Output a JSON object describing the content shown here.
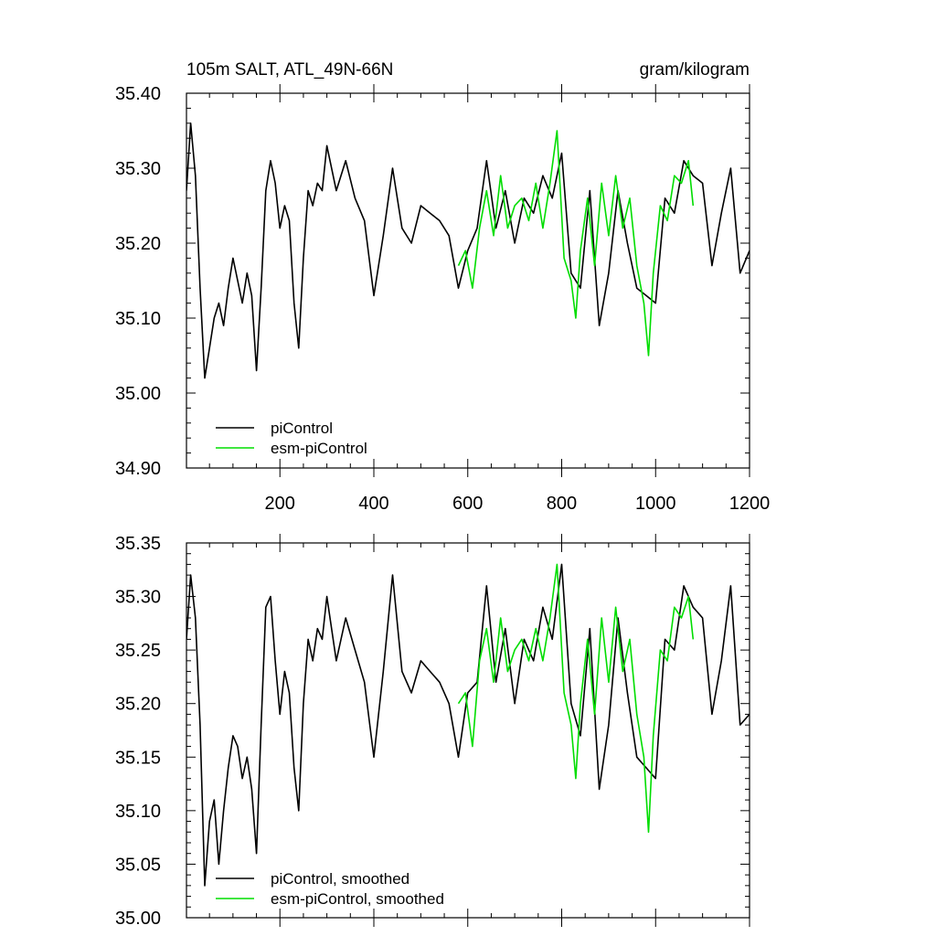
{
  "chart_data": [
    {
      "type": "line",
      "title_left": "105m SALT, ATL_49N-66N",
      "title_right": "gram/kilogram",
      "xlabel": "",
      "ylabel": "",
      "xlim": [
        1,
        1200
      ],
      "ylim": [
        34.9,
        35.4
      ],
      "x_ticks": [
        200,
        400,
        600,
        800,
        1000,
        1200
      ],
      "x_tick_labels": [
        "200",
        "400",
        "600",
        "800",
        "1000",
        "1200"
      ],
      "y_ticks": [
        34.9,
        35.0,
        35.1,
        35.2,
        35.3,
        35.4
      ],
      "y_tick_labels": [
        "34.90",
        "35.00",
        "35.10",
        "35.20",
        "35.30",
        "35.40"
      ],
      "legend": {
        "placement": "bottom-left",
        "entries": [
          "piControl",
          "esm-piControl"
        ]
      },
      "series": [
        {
          "name": "piControl",
          "color": "#000000",
          "x": [
            1,
            10,
            20,
            30,
            40,
            50,
            60,
            70,
            80,
            90,
            100,
            110,
            120,
            130,
            140,
            150,
            160,
            170,
            180,
            190,
            200,
            210,
            220,
            230,
            240,
            250,
            260,
            270,
            280,
            290,
            300,
            320,
            340,
            360,
            380,
            400,
            420,
            440,
            460,
            480,
            500,
            520,
            540,
            560,
            580,
            600,
            620,
            640,
            660,
            680,
            700,
            720,
            740,
            760,
            780,
            800,
            820,
            840,
            860,
            880,
            900,
            920,
            940,
            960,
            980,
            1000,
            1020,
            1040,
            1060,
            1080,
            1100,
            1120,
            1140,
            1160,
            1180,
            1200
          ],
          "values": [
            35.27,
            35.36,
            35.29,
            35.14,
            35.02,
            35.06,
            35.1,
            35.12,
            35.09,
            35.14,
            35.18,
            35.15,
            35.12,
            35.16,
            35.13,
            35.03,
            35.14,
            35.27,
            35.31,
            35.28,
            35.22,
            35.25,
            35.23,
            35.12,
            35.06,
            35.18,
            35.27,
            35.25,
            35.28,
            35.27,
            35.33,
            35.27,
            35.31,
            35.26,
            35.23,
            35.13,
            35.21,
            35.3,
            35.22,
            35.2,
            35.25,
            35.24,
            35.23,
            35.21,
            35.14,
            35.19,
            35.22,
            35.31,
            35.22,
            35.27,
            35.2,
            35.26,
            35.24,
            35.29,
            35.26,
            35.32,
            35.16,
            35.14,
            35.27,
            35.09,
            35.16,
            35.27,
            35.2,
            35.14,
            35.13,
            35.12,
            35.26,
            35.24,
            35.31,
            35.29,
            35.28,
            35.17,
            35.24,
            35.3,
            35.16,
            35.19
          ]
        },
        {
          "name": "esm-piControl",
          "color": "#00dd00",
          "x": [
            580,
            595,
            610,
            625,
            640,
            655,
            670,
            685,
            700,
            715,
            730,
            745,
            760,
            775,
            790,
            805,
            820,
            830,
            840,
            855,
            870,
            885,
            900,
            915,
            930,
            945,
            960,
            975,
            985,
            995,
            1010,
            1025,
            1040,
            1055,
            1070,
            1080
          ],
          "values": [
            35.17,
            35.19,
            35.14,
            35.22,
            35.27,
            35.21,
            35.29,
            35.22,
            35.25,
            35.26,
            35.23,
            35.28,
            35.22,
            35.28,
            35.35,
            35.18,
            35.15,
            35.1,
            35.19,
            35.26,
            35.17,
            35.28,
            35.21,
            35.29,
            35.22,
            35.26,
            35.17,
            35.12,
            35.05,
            35.16,
            35.25,
            35.23,
            35.29,
            35.28,
            35.31,
            35.25
          ]
        }
      ]
    },
    {
      "type": "line",
      "title_left": "",
      "title_right": "",
      "xlabel": "",
      "ylabel": "",
      "xlim": [
        1,
        1200
      ],
      "ylim": [
        35.0,
        35.35
      ],
      "x_ticks": [
        200,
        400,
        600,
        800,
        1000,
        1200
      ],
      "x_tick_labels": [],
      "y_ticks": [
        35.0,
        35.05,
        35.1,
        35.15,
        35.2,
        35.25,
        35.3,
        35.35
      ],
      "y_tick_labels": [
        "35.00",
        "35.05",
        "35.10",
        "35.15",
        "35.20",
        "35.25",
        "35.30",
        "35.35"
      ],
      "legend": {
        "placement": "bottom-left",
        "entries": [
          "piControl, smoothed",
          "esm-piControl, smoothed"
        ]
      },
      "series": [
        {
          "name": "piControl, smoothed",
          "color": "#000000",
          "x": [
            1,
            10,
            20,
            30,
            40,
            50,
            60,
            70,
            80,
            90,
            100,
            110,
            120,
            130,
            140,
            150,
            160,
            170,
            180,
            190,
            200,
            210,
            220,
            230,
            240,
            250,
            260,
            270,
            280,
            290,
            300,
            320,
            340,
            360,
            380,
            400,
            420,
            440,
            460,
            480,
            500,
            520,
            540,
            560,
            580,
            600,
            620,
            640,
            660,
            680,
            700,
            720,
            740,
            760,
            780,
            800,
            820,
            840,
            860,
            880,
            900,
            920,
            940,
            960,
            980,
            1000,
            1020,
            1040,
            1060,
            1080,
            1100,
            1120,
            1140,
            1160,
            1180,
            1200
          ],
          "values": [
            35.26,
            35.32,
            35.28,
            35.18,
            35.03,
            35.09,
            35.11,
            35.05,
            35.1,
            35.14,
            35.17,
            35.16,
            35.13,
            35.15,
            35.12,
            35.06,
            35.18,
            35.29,
            35.3,
            35.24,
            35.19,
            35.23,
            35.21,
            35.14,
            35.1,
            35.2,
            35.26,
            35.24,
            35.27,
            35.26,
            35.3,
            35.24,
            35.28,
            35.25,
            35.22,
            35.15,
            35.23,
            35.32,
            35.23,
            35.21,
            35.24,
            35.23,
            35.22,
            35.2,
            35.15,
            35.21,
            35.22,
            35.31,
            35.22,
            35.27,
            35.2,
            35.26,
            35.24,
            35.29,
            35.26,
            35.33,
            35.2,
            35.17,
            35.27,
            35.12,
            35.18,
            35.28,
            35.21,
            35.15,
            35.14,
            35.13,
            35.26,
            35.25,
            35.31,
            35.29,
            35.28,
            35.19,
            35.24,
            35.31,
            35.18,
            35.19
          ]
        },
        {
          "name": "esm-piControl, smoothed",
          "color": "#00dd00",
          "x": [
            580,
            595,
            610,
            625,
            640,
            655,
            670,
            685,
            700,
            715,
            730,
            745,
            760,
            775,
            790,
            805,
            820,
            830,
            840,
            855,
            870,
            885,
            900,
            915,
            930,
            945,
            960,
            975,
            985,
            995,
            1010,
            1025,
            1040,
            1055,
            1070,
            1080
          ],
          "values": [
            35.2,
            35.21,
            35.16,
            35.24,
            35.27,
            35.22,
            35.28,
            35.23,
            35.25,
            35.26,
            35.24,
            35.27,
            35.24,
            35.28,
            35.33,
            35.21,
            35.18,
            35.13,
            35.2,
            35.26,
            35.19,
            35.28,
            35.22,
            35.29,
            35.23,
            35.26,
            35.19,
            35.15,
            35.08,
            35.17,
            35.25,
            35.24,
            35.29,
            35.28,
            35.3,
            35.26
          ]
        }
      ]
    }
  ]
}
